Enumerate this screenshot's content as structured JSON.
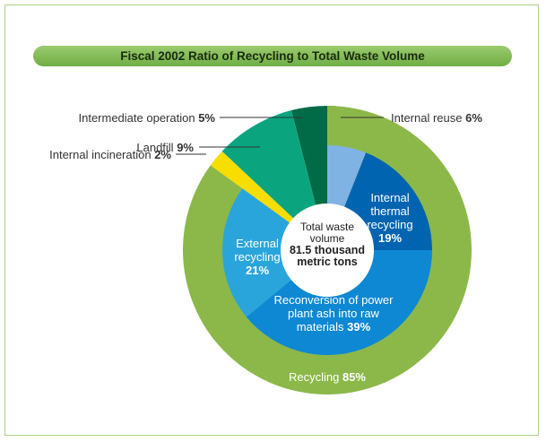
{
  "chart_data": {
    "type": "nested-donut",
    "title": "Fiscal 2002 Ratio of Recycling to Total Waste Volume",
    "center_label": "Total waste volume",
    "center_value_label": "81.5 thousand metric tons",
    "outer": {
      "categories": [
        "Recycling",
        "Internal incineration",
        "Landfill",
        "Intermediate operation"
      ],
      "values": [
        85,
        2,
        9,
        5
      ],
      "value_labels": [
        "85%",
        "2%",
        "9%",
        "5%"
      ],
      "colors": [
        "#8cb84a",
        "#f7dd00",
        "#0aa57f",
        "#006b46"
      ]
    },
    "inner": {
      "categories": [
        "Internal reuse",
        "Internal thermal recycling",
        "Reconversion of power plant ash into raw materials",
        "External recycling"
      ],
      "values": [
        6,
        19,
        39,
        21
      ],
      "value_labels": [
        "6%",
        "19%",
        "39%",
        "21%"
      ],
      "colors": [
        "#7eb3e3",
        "#0064b0",
        "#0e88d3",
        "#2aa5dc"
      ]
    }
  }
}
